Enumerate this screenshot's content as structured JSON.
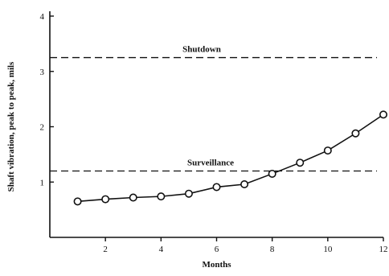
{
  "chart_data": {
    "type": "line",
    "xlabel": "Months",
    "ylabel": "Shaft vibration, peak to peak, mils",
    "xlim": [
      0,
      12
    ],
    "ylim": [
      0,
      4
    ],
    "x_ticks": [
      2,
      4,
      6,
      8,
      10,
      12
    ],
    "y_ticks": [
      1,
      2,
      3,
      4
    ],
    "grid": false,
    "reference_lines": [
      {
        "label": "Shutdown",
        "value": 3.25
      },
      {
        "label": "Surveillance",
        "value": 1.2
      }
    ],
    "series": [
      {
        "x": [
          1,
          2,
          3,
          4,
          5,
          6,
          7,
          8,
          9,
          10,
          11,
          12
        ],
        "y": [
          0.65,
          0.69,
          0.72,
          0.74,
          0.79,
          0.91,
          0.96,
          1.15,
          1.35,
          1.57,
          1.88,
          2.22
        ]
      }
    ]
  }
}
